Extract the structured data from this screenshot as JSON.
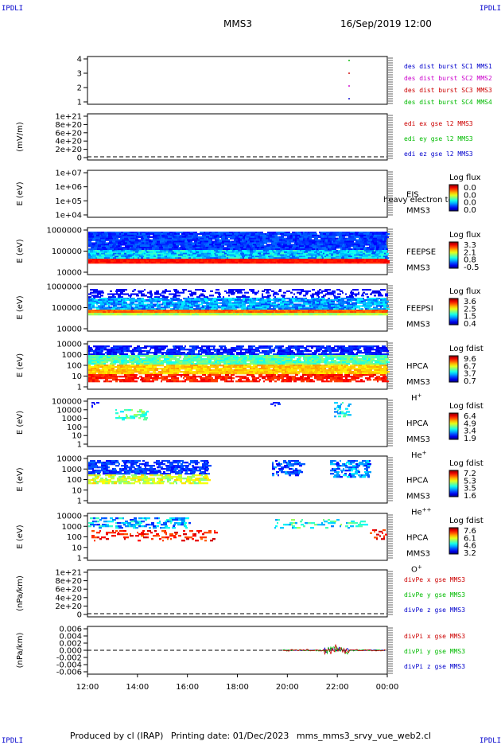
{
  "corner_label": "IPDLI",
  "header": {
    "spacecraft": "MMS3",
    "datetime": "16/Sep/2019 12:00"
  },
  "footer": {
    "produced": "Produced by cl (IRAP)",
    "printing": "Printing date: 01/Dec/2023",
    "script": "mms_mms3_srvy_vue_web2.cl"
  },
  "time_axis": {
    "ticks": [
      "12:00",
      "14:00",
      "16:00",
      "18:00",
      "20:00",
      "22:00",
      "00:00"
    ]
  },
  "chart_data": [
    {
      "type": "line",
      "ylabel": "",
      "yticks": [
        "1",
        "2",
        "3",
        "4"
      ],
      "legend": [
        {
          "text": "des dist burst SC1 MMS1",
          "color": "#0000cc"
        },
        {
          "text": "des dist burst SC2 MMS2",
          "color": "#cc00cc"
        },
        {
          "text": "des dist burst SC3 MMS3",
          "color": "#cc0000"
        },
        {
          "text": "des dist burst SC4 MMS4",
          "color": "#00bb00"
        }
      ]
    },
    {
      "type": "line",
      "ylabel": "(mV/m)",
      "yticks": [
        "0",
        "2e+20",
        "4e+20",
        "6e+20",
        "8e+20",
        "1e+21"
      ],
      "legend": [
        {
          "text": "edi ex gse l2 MMS3",
          "color": "#cc0000"
        },
        {
          "text": "edi ey gse l2 MMS3",
          "color": "#00bb00"
        },
        {
          "text": "edi ez gse l2 MMS3",
          "color": "#0000cc"
        }
      ]
    },
    {
      "type": "heatmap",
      "ylabel": "E (eV)",
      "yticks": [
        "1e+04",
        "1e+05",
        "1e+06",
        "1e+07"
      ],
      "side": [
        "EIS",
        "MMS3"
      ],
      "note": "heavy electron tc",
      "cb_title": "Log flux",
      "cb_ticks": [
        "0.0",
        "0.0",
        "0.0",
        "0.0"
      ]
    },
    {
      "type": "heatmap",
      "ylabel": "E (eV)",
      "yticks": [
        "10000",
        "100000",
        "1000000"
      ],
      "side": [
        "FEEPSE",
        "MMS3"
      ],
      "cb_title": "Log flux",
      "cb_ticks": [
        "3.3",
        "2.1",
        "0.8",
        "-0.5"
      ]
    },
    {
      "type": "heatmap",
      "ylabel": "E (eV)",
      "yticks": [
        "10000",
        "100000",
        "1000000"
      ],
      "side": [
        "FEEPSI",
        "MMS3"
      ],
      "cb_title": "Log flux",
      "cb_ticks": [
        "3.6",
        "2.5",
        "1.5",
        "0.4"
      ]
    },
    {
      "type": "heatmap",
      "ylabel": "E (eV)",
      "yticks": [
        "1",
        "10",
        "100",
        "1000",
        "10000"
      ],
      "side": [
        "HPCA",
        "MMS3"
      ],
      "species": "H",
      "charge": "+",
      "cb_title": "Log fdist",
      "cb_ticks": [
        "9.6",
        "6.7",
        "3.7",
        "0.7"
      ]
    },
    {
      "type": "heatmap",
      "ylabel": "E (eV)",
      "yticks": [
        "1",
        "10",
        "100",
        "1000",
        "10000",
        "100000"
      ],
      "side": [
        "HPCA",
        "MMS3"
      ],
      "species": "He",
      "charge": "+",
      "cb_title": "Log fdist",
      "cb_ticks": [
        "6.4",
        "4.9",
        "3.4",
        "1.9"
      ]
    },
    {
      "type": "heatmap",
      "ylabel": "E (eV)",
      "yticks": [
        "1",
        "10",
        "100",
        "1000",
        "10000"
      ],
      "side": [
        "HPCA",
        "MMS3"
      ],
      "species": "He",
      "charge": "++",
      "cb_title": "Log fdist",
      "cb_ticks": [
        "7.2",
        "5.3",
        "3.5",
        "1.6"
      ]
    },
    {
      "type": "heatmap",
      "ylabel": "E (eV)",
      "yticks": [
        "1",
        "10",
        "100",
        "1000",
        "10000"
      ],
      "side": [
        "HPCA",
        "MMS3"
      ],
      "species": "O",
      "charge": "+",
      "cb_title": "Log fdist",
      "cb_ticks": [
        "7.6",
        "6.1",
        "4.6",
        "3.2"
      ]
    },
    {
      "type": "line",
      "ylabel": "(nPa/km)",
      "yticks": [
        "0",
        "2e+20",
        "4e+20",
        "6e+20",
        "8e+20",
        "1e+21"
      ],
      "legend": [
        {
          "text": "divPe x gse MMS3",
          "color": "#cc0000"
        },
        {
          "text": "divPe y gse MMS3",
          "color": "#00bb00"
        },
        {
          "text": "divPe z gse MMS3",
          "color": "#0000cc"
        }
      ]
    },
    {
      "type": "line",
      "ylabel": "(nPa/km)",
      "yticks": [
        "-0.006",
        "-0.004",
        "-0.002",
        "0.000",
        "0.002",
        "0.004",
        "0.006"
      ],
      "legend": [
        {
          "text": "divPi x gse MMS3",
          "color": "#cc0000"
        },
        {
          "text": "divPi y gse MMS3",
          "color": "#00bb00"
        },
        {
          "text": "divPi z gse MMS3",
          "color": "#0000cc"
        }
      ]
    }
  ]
}
